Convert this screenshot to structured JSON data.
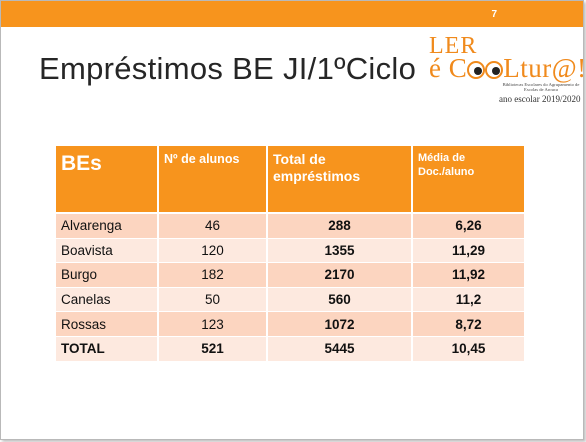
{
  "slide": {
    "number": "7",
    "title": "Empréstimos  BE JI/1ºCiclo"
  },
  "logo": {
    "line1": "LER",
    "line2_left": "é C",
    "line2_right": "Ltur@!",
    "small_text": "Bibliotecas Escolares do Agrupamento de Escolas de Arouca",
    "year": "ano escolar 2019/2020",
    "accent_color": "#f08a1c"
  },
  "colors": {
    "header_bg": "#f7941d",
    "row_odd": "#fcd5c0",
    "row_even": "#fde9df",
    "total_text": "#f7941d"
  },
  "table": {
    "headers": [
      "BEs",
      "Nº de alunos",
      "Total de empréstimos",
      "Média de Doc./aluno"
    ],
    "rows": [
      [
        "Alvarenga",
        "46",
        "288",
        "6,26"
      ],
      [
        "Boavista",
        "120",
        "1355",
        "11,29"
      ],
      [
        "Burgo",
        "182",
        "2170",
        "11,92"
      ],
      [
        "Canelas",
        "50",
        "560",
        "11,2"
      ],
      [
        "Rossas",
        "123",
        "1072",
        "8,72"
      ]
    ],
    "total": [
      "TOTAL",
      "521",
      "5445",
      "10,45"
    ]
  }
}
